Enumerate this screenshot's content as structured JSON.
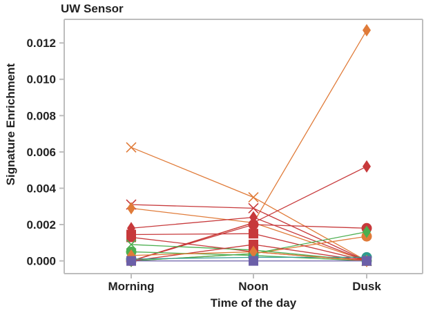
{
  "chart_data": {
    "type": "line",
    "title": "UW Sensor",
    "xlabel": "Time of the day",
    "ylabel": "Signature Enrichment",
    "categories": [
      "Morning",
      "Noon",
      "Dusk"
    ],
    "ylim": [
      -0.0007,
      0.0133
    ],
    "yticks": [
      "0.000",
      "0.002",
      "0.004",
      "0.006",
      "0.008",
      "0.010",
      "0.012"
    ],
    "grid": false,
    "colors": {
      "orange": "#e07b39",
      "red": "#c7393b",
      "green": "#4caf50",
      "teal": "#2f9c8e",
      "purple": "#6b5fa8",
      "axis": "#bdbdbd",
      "text": "#222222"
    },
    "series": [
      {
        "marker": "x",
        "color": "#e07b39",
        "values": [
          0.00625,
          0.0035,
          0.0
        ]
      },
      {
        "marker": "diamond",
        "color": "#e07b39",
        "values": [
          0.0,
          0.0021,
          0.0127
        ]
      },
      {
        "marker": "diamond",
        "color": "#c7393b",
        "values": [
          0.0,
          0.0021,
          0.0052
        ]
      },
      {
        "marker": "x",
        "color": "#c7393b",
        "values": [
          0.0031,
          0.0029,
          0.0
        ]
      },
      {
        "marker": "diamond",
        "color": "#e07b39",
        "values": [
          0.0029,
          0.0021,
          0.0
        ]
      },
      {
        "marker": "diamond",
        "color": "#c7393b",
        "values": [
          0.0018,
          0.0024,
          0.0
        ]
      },
      {
        "marker": "circle",
        "color": "#c7393b",
        "values": [
          0.0,
          0.002,
          0.0018
        ]
      },
      {
        "marker": "circle",
        "color": "#e07b39",
        "values": [
          0.0,
          0.0004,
          0.00135
        ]
      },
      {
        "marker": "square",
        "color": "#c7393b",
        "values": [
          0.00145,
          0.0015,
          0.0
        ]
      },
      {
        "marker": "square",
        "color": "#c7393b",
        "values": [
          0.0013,
          0.0005,
          0.0
        ]
      },
      {
        "marker": "diamond",
        "color": "#4caf50",
        "values": [
          0.0,
          0.0004,
          0.0016
        ]
      },
      {
        "marker": "x",
        "color": "#4caf50",
        "values": [
          0.0009,
          0.0006,
          0.0
        ]
      },
      {
        "marker": "square",
        "color": "#c7393b",
        "values": [
          0.0,
          0.0009,
          0.0
        ]
      },
      {
        "marker": "circle",
        "color": "#4caf50",
        "values": [
          0.0005,
          0.0003,
          0.0
        ]
      },
      {
        "marker": "circle",
        "color": "#2f9c8e",
        "values": [
          0.0001,
          0.0002,
          0.0002
        ]
      },
      {
        "marker": "diamond",
        "color": "#e07b39",
        "values": [
          0.0003,
          0.0005,
          0.0
        ]
      },
      {
        "marker": "square",
        "color": "#6b5fa8",
        "values": [
          0.0,
          0.0,
          0.0
        ]
      }
    ]
  }
}
